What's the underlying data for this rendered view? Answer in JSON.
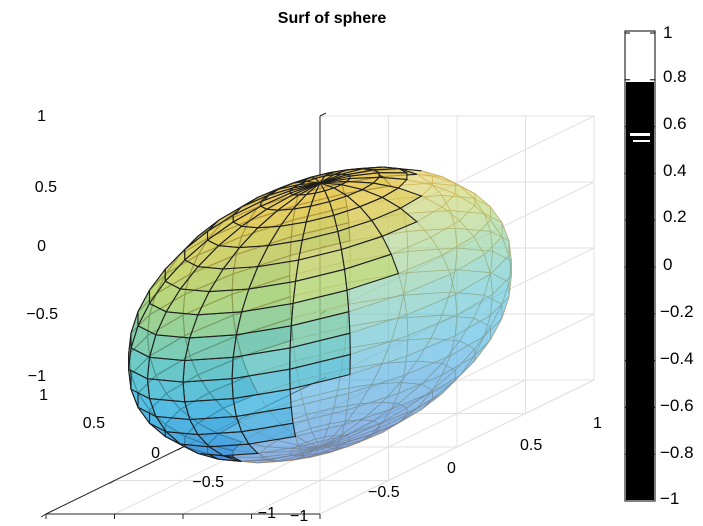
{
  "chart_data": {
    "type": "surface",
    "title": "Surf of sphere",
    "xlabel": "",
    "ylabel": "",
    "zlabel": "",
    "surface": "unit sphere",
    "mesh": {
      "n_latitude": 20,
      "n_longitude": 20
    },
    "xlim": [
      -1,
      1
    ],
    "ylim": [
      -1,
      1
    ],
    "zlim": [
      -1,
      1
    ],
    "x_ticks": [
      "−1",
      "−0.5",
      "0",
      "0.5",
      "1"
    ],
    "y_ticks": [
      "−1",
      "−0.5",
      "0",
      "0.5",
      "1"
    ],
    "z_ticks": [
      "−1",
      "−0.5",
      "0",
      "0.5",
      "1"
    ],
    "grid": true,
    "colormap": "parula",
    "face_alpha": 0.7,
    "colorbar": {
      "ticks": [
        "1",
        "0.8",
        "0.6",
        "0.4",
        "0.2",
        "0",
        "−0.2",
        "−0.4",
        "−0.6",
        "−0.8",
        "−1"
      ],
      "bar_color": "#000000"
    },
    "colors": {
      "gold_top": "#e6c84e",
      "yellow_green": "#c5d85a",
      "teal_mid": "#6cc9b0",
      "cyan": "#45bde0",
      "blue_bottom": "#3b8bd6",
      "grid_line": "#e0e0e0",
      "back_mesh": "#c9965a",
      "front_mesh": "#1f1f1f"
    }
  }
}
